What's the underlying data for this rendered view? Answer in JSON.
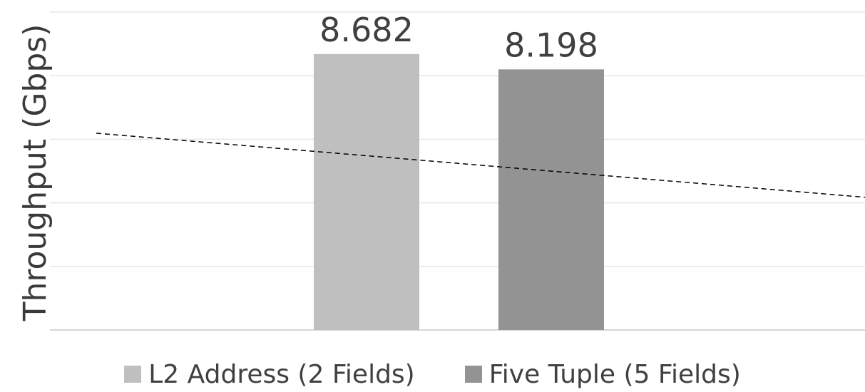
{
  "chart_data": {
    "type": "bar",
    "title": "",
    "xlabel": "",
    "ylabel": "Throughput (Gbps)",
    "ylim": [
      0,
      10
    ],
    "grid": true,
    "legend_position": "bottom",
    "categories": [
      ""
    ],
    "series": [
      {
        "name": "L2 Address (2 Fields)",
        "values": [
          8.682
        ],
        "color": "#bfbfbf"
      },
      {
        "name": "Five Tuple (5 Fields)",
        "values": [
          8.198
        ],
        "color": "#939393"
      }
    ],
    "trendline": {
      "style": "dashed",
      "color": "#000000"
    }
  }
}
